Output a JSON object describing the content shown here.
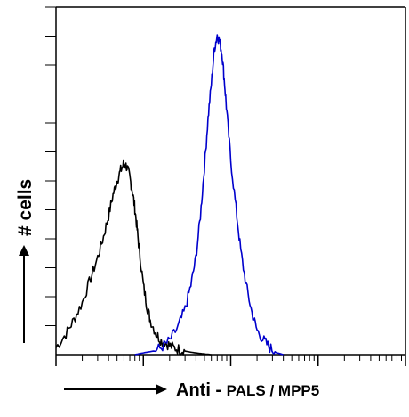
{
  "chart_data": {
    "type": "line",
    "title": "",
    "xlabel_main": "Anti -",
    "xlabel_target": "PALS / MPP5",
    "ylabel": "# cells",
    "x_scale": "log",
    "xlim": [
      1,
      10000
    ],
    "ylim": [
      0,
      100
    ],
    "grid": false,
    "legend": "none",
    "series": [
      {
        "color": "#000000",
        "x": [
          1,
          1.3,
          1.6,
          2,
          2.5,
          3,
          3.5,
          4,
          4.5,
          5,
          5.5,
          6,
          6.5,
          7,
          7.5,
          8,
          8.5,
          9,
          10,
          11,
          12,
          14,
          16,
          19,
          22,
          26,
          30,
          35,
          42,
          50,
          60
        ],
        "y": [
          2,
          6,
          10,
          15,
          22,
          28,
          34,
          40,
          46,
          50,
          53,
          55,
          54,
          51,
          47,
          42,
          36,
          30,
          20,
          14,
          10,
          6,
          4,
          3,
          2,
          1.5,
          1,
          0.7,
          0.4,
          0.2,
          0
        ]
      },
      {
        "color": "#0000cc",
        "x": [
          8,
          10,
          13,
          16,
          20,
          25,
          30,
          35,
          40,
          45,
          50,
          55,
          60,
          65,
          70,
          75,
          80,
          85,
          90,
          100,
          115,
          130,
          150,
          175,
          200,
          240,
          280,
          330,
          400
        ],
        "y": [
          0,
          0.5,
          1,
          2,
          4,
          8,
          13,
          20,
          28,
          40,
          54,
          68,
          78,
          88,
          92,
          90,
          86,
          78,
          70,
          56,
          42,
          30,
          20,
          12,
          7,
          4,
          2,
          0.6,
          0
        ]
      }
    ]
  }
}
